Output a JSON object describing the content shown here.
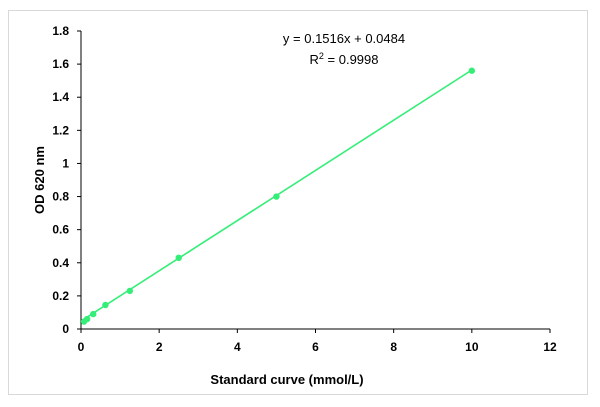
{
  "chart_data": {
    "type": "scatter",
    "title": "",
    "xlabel": "Standard curve (mmol/L)",
    "ylabel": "OD 620 nm",
    "xlim": [
      0,
      12
    ],
    "ylim": [
      0,
      1.8
    ],
    "x_ticks": [
      "0",
      "2",
      "4",
      "6",
      "8",
      "10",
      "12"
    ],
    "y_ticks": [
      "0",
      "0.2",
      "0.4",
      "0.6",
      "0.8",
      "1",
      "1.2",
      "1.4",
      "1.6",
      "1.8"
    ],
    "grid": false,
    "legend": "none",
    "series": [
      {
        "x": [
          0.078,
          0.156,
          0.3125,
          0.625,
          1.25,
          2.5,
          5,
          10
        ],
        "y": [
          0.045,
          0.06,
          0.09,
          0.145,
          0.23,
          0.43,
          0.8,
          1.56
        ],
        "marker_color": "#33ee77"
      }
    ],
    "trendline": {
      "slope": 0.1516,
      "intercept": 0.0484,
      "x_range": [
        0.078,
        10
      ],
      "color": "#33ee77"
    },
    "annotations": {
      "equation": "y = 0.1516x + 0.0484",
      "r2_prefix": "R",
      "r2_sup": "2",
      "r2_value": " = 0.9998"
    }
  }
}
